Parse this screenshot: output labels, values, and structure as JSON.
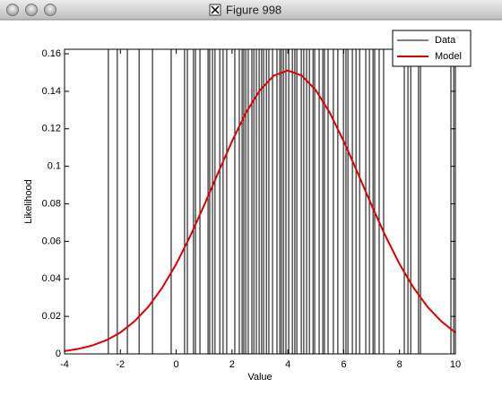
{
  "window": {
    "title": "Figure 998"
  },
  "chart_data": {
    "type": "line",
    "xlabel": "Value",
    "ylabel": "Likelihood",
    "xlim": [
      -4,
      10
    ],
    "xticks": [
      -4,
      -2,
      0,
      2,
      4,
      6,
      8,
      10
    ],
    "ylim": [
      0,
      0.1624
    ],
    "yticks": [
      0,
      0.02,
      0.04,
      0.06,
      0.08,
      0.1,
      0.12,
      0.14,
      0.16
    ],
    "grid": false,
    "legend": "upper right",
    "series": [
      {
        "name": "Data",
        "type": "rug",
        "color": "#000000",
        "x": [
          -2.43,
          -2.11,
          -1.75,
          -1.33,
          -0.85,
          -0.18,
          0.3,
          0.4,
          0.62,
          0.69,
          0.85,
          1.14,
          1.2,
          1.3,
          1.39,
          1.56,
          1.68,
          1.81,
          2.1,
          2.26,
          2.36,
          2.42,
          2.49,
          2.58,
          2.71,
          2.78,
          2.87,
          2.97,
          3.06,
          3.13,
          3.23,
          3.32,
          3.45,
          3.61,
          3.71,
          3.77,
          3.84,
          3.93,
          4.03,
          4.16,
          4.25,
          4.32,
          4.48,
          4.57,
          4.67,
          4.77,
          4.9,
          4.96,
          5.12,
          5.25,
          5.31,
          5.44,
          5.63,
          5.79,
          5.99,
          6.08,
          6.15,
          6.31,
          6.44,
          6.57,
          6.79,
          6.92,
          7.05,
          7.11,
          7.27,
          7.43,
          8.17,
          8.3,
          8.4,
          8.68,
          8.75,
          9.84,
          9.94
        ]
      },
      {
        "name": "Model",
        "type": "line",
        "color": "#e00000",
        "x": [
          -4,
          -3.5,
          -3,
          -2.5,
          -2,
          -1.5,
          -1,
          -0.5,
          0,
          0.5,
          1,
          1.5,
          2,
          2.5,
          3,
          3.5,
          4,
          4.5,
          5,
          5.5,
          6,
          6.5,
          7,
          7.5,
          8,
          8.5,
          9,
          9.5,
          10
        ],
        "values": [
          0.0015,
          0.0027,
          0.0045,
          0.0073,
          0.0114,
          0.0173,
          0.0251,
          0.0353,
          0.0479,
          0.0627,
          0.0792,
          0.0965,
          0.1134,
          0.1286,
          0.1406,
          0.1484,
          0.1511,
          0.1484,
          0.1406,
          0.1286,
          0.1134,
          0.0965,
          0.0792,
          0.0627,
          0.0479,
          0.0353,
          0.0251,
          0.0173,
          0.0114
        ]
      }
    ]
  }
}
